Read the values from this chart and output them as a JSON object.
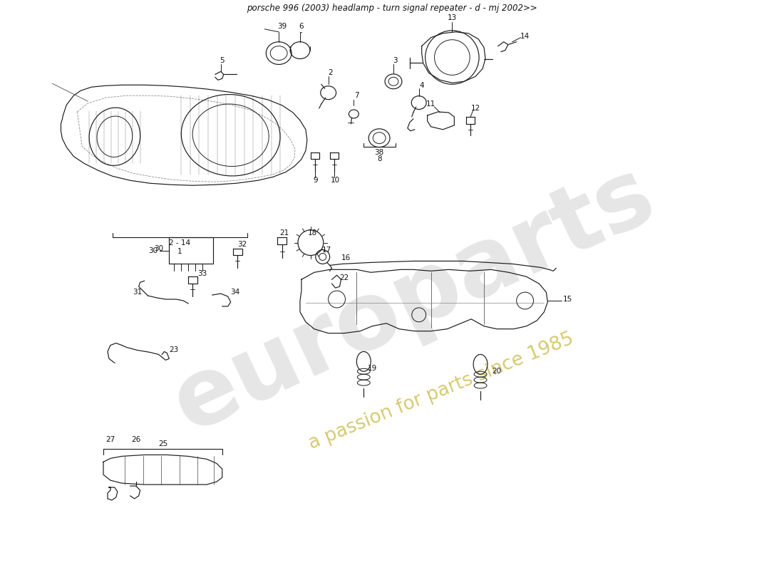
{
  "title": "porsche 996 (2003) headlamp - turn signal repeater - d - mj 2002>>",
  "bg_color": "#ffffff",
  "line_color": "#1a1a1a",
  "label_color": "#111111",
  "watermark1": "europarts",
  "watermark2": "a passion for parts since 1985",
  "wm1_color": "#c0c0c0",
  "wm2_color": "#c8b840",
  "figsize": [
    11.0,
    8.0
  ],
  "dpi": 100,
  "xlim": [
    0,
    11
  ],
  "ylim": [
    0,
    8
  ]
}
